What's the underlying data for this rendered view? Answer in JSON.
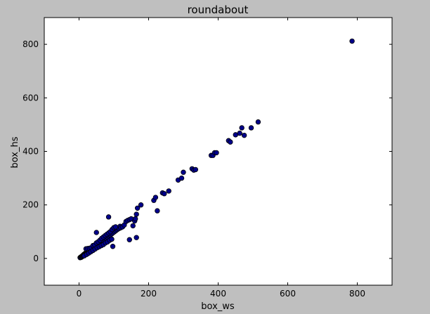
{
  "figure": {
    "background": "#bfbfbf",
    "plot_background": "#ffffff"
  },
  "chart_data": {
    "type": "scatter",
    "title": "roundabout",
    "xlabel": "box_ws",
    "ylabel": "box_hs",
    "xlim": [
      -100,
      900
    ],
    "ylim": [
      -100,
      900
    ],
    "xticks": [
      0,
      200,
      400,
      600,
      800
    ],
    "yticks": [
      0,
      200,
      400,
      600,
      800
    ],
    "xtick_labels": [
      "0",
      "200",
      "400",
      "600",
      "800"
    ],
    "ytick_labels": [
      "0",
      "200",
      "400",
      "600",
      "800"
    ],
    "grid": false,
    "marker_color": "#00008b",
    "marker_edge": "#000000",
    "series": [
      {
        "points": [
          [
            3,
            3
          ],
          [
            5,
            5
          ],
          [
            6,
            4
          ],
          [
            7,
            7
          ],
          [
            8,
            6
          ],
          [
            9,
            9
          ],
          [
            10,
            8
          ],
          [
            11,
            11
          ],
          [
            12,
            10
          ],
          [
            13,
            14
          ],
          [
            14,
            12
          ],
          [
            15,
            16
          ],
          [
            16,
            15
          ],
          [
            17,
            18
          ],
          [
            18,
            17
          ],
          [
            19,
            20
          ],
          [
            20,
            19
          ],
          [
            21,
            22
          ],
          [
            22,
            21
          ],
          [
            23,
            25
          ],
          [
            24,
            23
          ],
          [
            25,
            27
          ],
          [
            26,
            25
          ],
          [
            27,
            28
          ],
          [
            28,
            27
          ],
          [
            29,
            31
          ],
          [
            30,
            29
          ],
          [
            31,
            33
          ],
          [
            32,
            30
          ],
          [
            33,
            35
          ],
          [
            34,
            33
          ],
          [
            35,
            37
          ],
          [
            36,
            35
          ],
          [
            37,
            39
          ],
          [
            38,
            37
          ],
          [
            39,
            41
          ],
          [
            40,
            38
          ],
          [
            41,
            43
          ],
          [
            42,
            41
          ],
          [
            43,
            45
          ],
          [
            44,
            42
          ],
          [
            45,
            47
          ],
          [
            46,
            45
          ],
          [
            47,
            49
          ],
          [
            48,
            46
          ],
          [
            49,
            51
          ],
          [
            50,
            48
          ],
          [
            51,
            53
          ],
          [
            52,
            50
          ],
          [
            53,
            55
          ],
          [
            54,
            52
          ],
          [
            55,
            57
          ],
          [
            56,
            54
          ],
          [
            57,
            59
          ],
          [
            58,
            56
          ],
          [
            59,
            61
          ],
          [
            60,
            58
          ],
          [
            61,
            63
          ],
          [
            62,
            60
          ],
          [
            63,
            65
          ],
          [
            64,
            62
          ],
          [
            65,
            67
          ],
          [
            66,
            64
          ],
          [
            67,
            69
          ],
          [
            68,
            66
          ],
          [
            69,
            71
          ],
          [
            70,
            68
          ],
          [
            72,
            74
          ],
          [
            74,
            72
          ],
          [
            76,
            78
          ],
          [
            78,
            76
          ],
          [
            80,
            82
          ],
          [
            82,
            80
          ],
          [
            84,
            86
          ],
          [
            86,
            84
          ],
          [
            88,
            90
          ],
          [
            90,
            88
          ],
          [
            92,
            95
          ],
          [
            94,
            92
          ],
          [
            96,
            99
          ],
          [
            98,
            96
          ],
          [
            100,
            103
          ],
          [
            102,
            100
          ],
          [
            104,
            106
          ],
          [
            106,
            104
          ],
          [
            108,
            110
          ],
          [
            110,
            108
          ],
          [
            112,
            114
          ],
          [
            115,
            112
          ],
          [
            118,
            120
          ],
          [
            20,
            36
          ],
          [
            25,
            37
          ],
          [
            30,
            38
          ],
          [
            35,
            40
          ],
          [
            40,
            48
          ],
          [
            45,
            50
          ],
          [
            50,
            58
          ],
          [
            55,
            62
          ],
          [
            60,
            68
          ],
          [
            65,
            75
          ],
          [
            70,
            80
          ],
          [
            75,
            85
          ],
          [
            80,
            90
          ],
          [
            85,
            95
          ],
          [
            90,
            100
          ],
          [
            95,
            108
          ],
          [
            100,
            115
          ],
          [
            105,
            118
          ],
          [
            15,
            10
          ],
          [
            22,
            15
          ],
          [
            28,
            20
          ],
          [
            34,
            25
          ],
          [
            40,
            30
          ],
          [
            46,
            35
          ],
          [
            52,
            40
          ],
          [
            58,
            44
          ],
          [
            64,
            48
          ],
          [
            70,
            52
          ],
          [
            76,
            58
          ],
          [
            82,
            62
          ],
          [
            88,
            68
          ],
          [
            94,
            72
          ],
          [
            50,
            97
          ],
          [
            85,
            155
          ],
          [
            97,
            45
          ],
          [
            120,
            115
          ],
          [
            125,
            118
          ],
          [
            130,
            125
          ],
          [
            135,
            138
          ],
          [
            140,
            142
          ],
          [
            145,
            145
          ],
          [
            150,
            148
          ],
          [
            155,
            122
          ],
          [
            160,
            140
          ],
          [
            162,
            148
          ],
          [
            165,
            165
          ],
          [
            168,
            188
          ],
          [
            178,
            200
          ],
          [
            145,
            70
          ],
          [
            165,
            78
          ],
          [
            215,
            217
          ],
          [
            220,
            228
          ],
          [
            225,
            178
          ],
          [
            240,
            245
          ],
          [
            245,
            242
          ],
          [
            258,
            252
          ],
          [
            285,
            293
          ],
          [
            295,
            300
          ],
          [
            300,
            322
          ],
          [
            325,
            335
          ],
          [
            330,
            330
          ],
          [
            335,
            332
          ],
          [
            380,
            385
          ],
          [
            385,
            385
          ],
          [
            390,
            395
          ],
          [
            395,
            395
          ],
          [
            430,
            440
          ],
          [
            435,
            435
          ],
          [
            450,
            462
          ],
          [
            462,
            468
          ],
          [
            468,
            488
          ],
          [
            475,
            460
          ],
          [
            495,
            488
          ],
          [
            515,
            510
          ],
          [
            785,
            812
          ]
        ]
      }
    ]
  }
}
